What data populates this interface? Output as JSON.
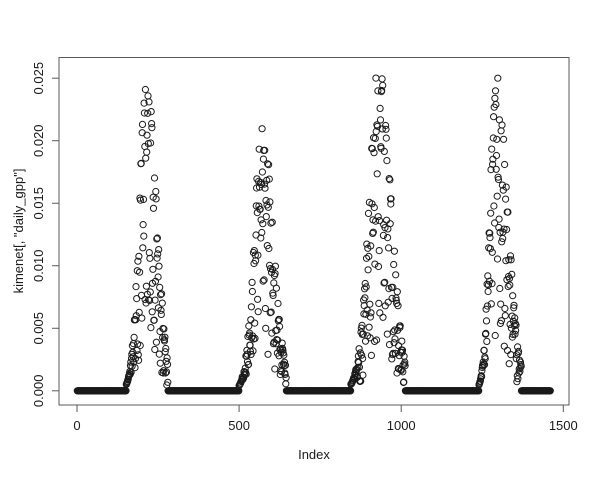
{
  "figure": {
    "background": "#ffffff",
    "frame_color": "#595959",
    "text_color": "#1a1a1a",
    "point_color": "#1b1b1b"
  },
  "chart_data": {
    "type": "scatter",
    "title": "",
    "xlabel": "Index",
    "ylabel": "kimenet[, \"daily_gpp\"]",
    "x_tick_values": [
      0,
      500,
      1000,
      1500
    ],
    "x_tick_labels": [
      "0",
      "500",
      "1000",
      "1500"
    ],
    "y_tick_values": [
      0,
      0.005,
      0.01,
      0.015,
      0.02,
      0.025
    ],
    "y_tick_labels": [
      "0.000",
      "0.005",
      "0.010",
      "0.015",
      "0.020",
      "0.025"
    ],
    "xlim": [
      -56,
      1518
    ],
    "ylim": [
      -0.00114,
      0.02666
    ],
    "grid": false,
    "legend": null,
    "marker": "open-circle",
    "marker_radius": 3.1,
    "n_points": 1460,
    "baseline_value": 0,
    "description": "Daily GPP model output vs day index: four seasonal bell-shaped peaks with heavy scatter, separated by long runs of exact zeros that overplot into thick black bands",
    "seasons": [
      {
        "start": 152,
        "peak": 215,
        "end": 280,
        "max": 0.0256
      },
      {
        "start": 500,
        "peak": 572,
        "end": 645,
        "max": 0.0206
      },
      {
        "start": 845,
        "peak": 932,
        "end": 1012,
        "max": 0.0256
      },
      {
        "start": 1240,
        "peak": 1293,
        "end": 1370,
        "max": 0.0246
      }
    ],
    "noise": {
      "seed": 1337,
      "scatter": 0.85,
      "ramp_days": 28,
      "power": 1.6,
      "jitter": 0.07,
      "value_cap": 0.0259
    }
  }
}
